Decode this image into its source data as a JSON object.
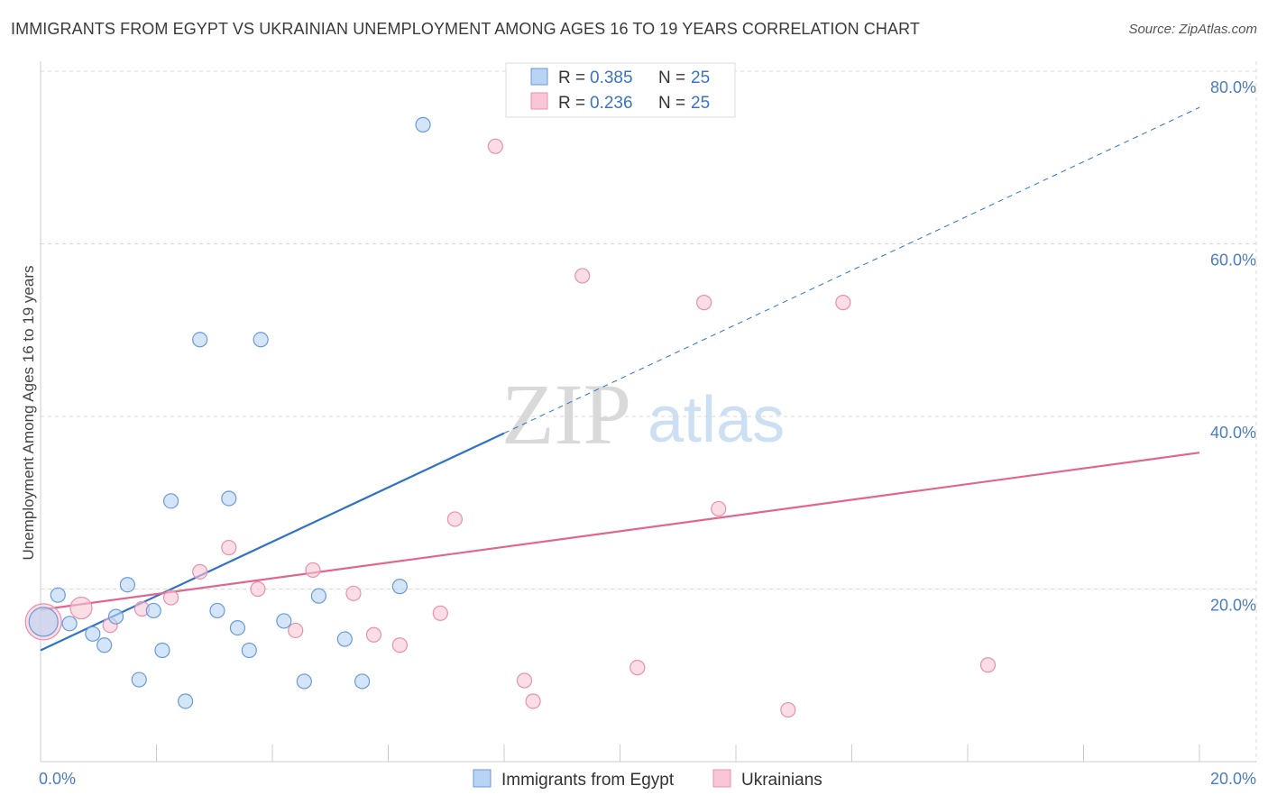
{
  "title": "IMMIGRANTS FROM EGYPT VS UKRAINIAN UNEMPLOYMENT AMONG AGES 16 TO 19 YEARS CORRELATION CHART",
  "source": "Source: ZipAtlas.com",
  "watermark": {
    "zip": "ZIP",
    "atlas": "atlas"
  },
  "colors": {
    "egypt_fill": "#b8d3f4",
    "egypt_stroke": "#6a9ad8",
    "egypt_line": "#2f72c9",
    "ukraine_fill": "#f8c6d6",
    "ukraine_stroke": "#e890ad",
    "ukraine_line": "#e0668f",
    "tick": "#4a7cc4",
    "grid": "#d8d8d8"
  },
  "legend": {
    "rows": [
      {
        "r_label": "R = ",
        "r_value": "0.385",
        "n_label": "N = ",
        "n_value": "25"
      },
      {
        "r_label": "R = ",
        "r_value": "0.236",
        "n_label": "N = ",
        "n_value": "25"
      }
    ]
  },
  "chart_data": {
    "type": "scatter",
    "title": "IMMIGRANTS FROM EGYPT VS UKRAINIAN UNEMPLOYMENT AMONG AGES 16 TO 19 YEARS CORRELATION CHART",
    "xlabel": "",
    "ylabel": "Unemployment Among Ages 16 to 19 years",
    "xlim": [
      0,
      20
    ],
    "ylim": [
      0,
      80
    ],
    "x_tick_labels": [
      {
        "value": 0,
        "label": "0.0%"
      },
      {
        "value": 20,
        "label": "20.0%"
      }
    ],
    "y_tick_labels": [
      {
        "value": 20,
        "label": "20.0%"
      },
      {
        "value": 40,
        "label": "40.0%"
      },
      {
        "value": 60,
        "label": "60.0%"
      },
      {
        "value": 80,
        "label": "80.0%"
      }
    ],
    "grid": true,
    "legend_position": "top-center",
    "series": [
      {
        "name": "Immigrants from Egypt",
        "points": [
          [
            0.05,
            16.2,
            3
          ],
          [
            0.3,
            19.3,
            1
          ],
          [
            0.5,
            16.0,
            1
          ],
          [
            0.9,
            14.8,
            1
          ],
          [
            1.1,
            13.5,
            1
          ],
          [
            1.3,
            16.8,
            1
          ],
          [
            1.5,
            20.5,
            1
          ],
          [
            1.7,
            9.5,
            1
          ],
          [
            1.95,
            17.5,
            1
          ],
          [
            2.1,
            12.9,
            1
          ],
          [
            2.25,
            30.2,
            1
          ],
          [
            2.5,
            7.0,
            1
          ],
          [
            2.75,
            48.9,
            1
          ],
          [
            3.05,
            17.5,
            1
          ],
          [
            3.25,
            30.5,
            1
          ],
          [
            3.4,
            15.5,
            1
          ],
          [
            3.6,
            12.9,
            1
          ],
          [
            3.8,
            48.9,
            1
          ],
          [
            4.2,
            16.3,
            1
          ],
          [
            4.55,
            9.3,
            1
          ],
          [
            4.8,
            19.2,
            1
          ],
          [
            5.25,
            14.2,
            1
          ],
          [
            5.55,
            9.3,
            1
          ],
          [
            6.2,
            20.3,
            1
          ],
          [
            6.6,
            73.8,
            1
          ]
        ],
        "trend": {
          "x_start": 0,
          "y_start": 12.9,
          "x_solid_end": 8.0,
          "x_end": 20.0,
          "y_end": 75.8
        }
      },
      {
        "name": "Ukrainians",
        "points": [
          [
            0.05,
            16.2,
            4
          ],
          [
            0.7,
            17.8,
            2
          ],
          [
            1.2,
            15.8,
            1
          ],
          [
            1.75,
            17.7,
            1
          ],
          [
            2.25,
            19.0,
            1
          ],
          [
            2.75,
            22.0,
            1
          ],
          [
            3.25,
            24.8,
            1
          ],
          [
            3.75,
            20.0,
            1
          ],
          [
            4.4,
            15.2,
            1
          ],
          [
            4.7,
            22.2,
            1
          ],
          [
            5.4,
            19.5,
            1
          ],
          [
            5.75,
            14.7,
            1
          ],
          [
            6.2,
            13.5,
            1
          ],
          [
            6.9,
            17.2,
            1
          ],
          [
            7.15,
            28.1,
            1
          ],
          [
            7.85,
            71.3,
            1
          ],
          [
            8.35,
            9.4,
            1
          ],
          [
            8.5,
            7.0,
            1
          ],
          [
            9.35,
            56.3,
            1
          ],
          [
            10.3,
            10.9,
            1
          ],
          [
            11.45,
            53.2,
            1
          ],
          [
            11.7,
            29.3,
            1
          ],
          [
            12.9,
            6.0,
            1
          ],
          [
            13.85,
            53.2,
            1
          ],
          [
            16.35,
            11.2,
            1
          ]
        ],
        "trend": {
          "x_start": 0,
          "y_start": 17.6,
          "x_end": 20.0,
          "y_end": 35.8
        }
      }
    ]
  }
}
